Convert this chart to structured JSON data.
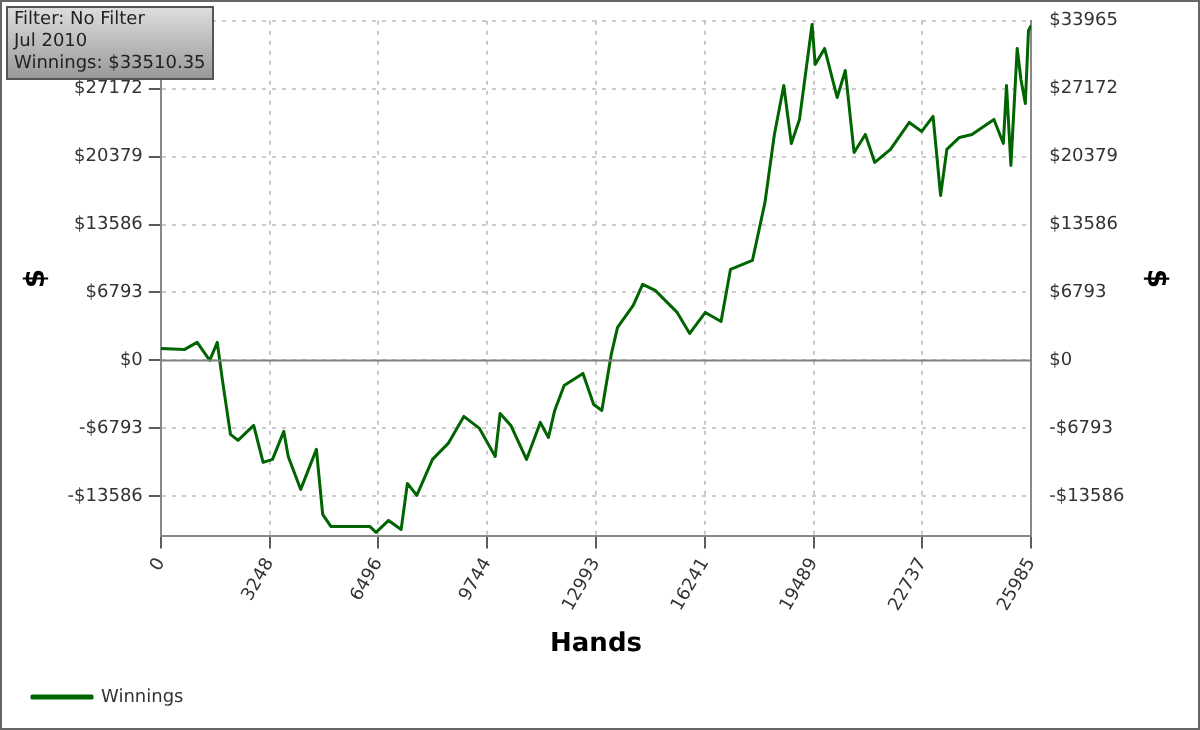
{
  "chart_data": {
    "type": "line",
    "xlabel": "Hands",
    "ylabel": "$",
    "y2label": "$",
    "annotations": [
      "Filter: No Filter",
      "Jul 2010",
      "Winnings: $33510.35"
    ],
    "x": [
      0,
      713,
      1085,
      1461,
      1686,
      1836,
      2080,
      2305,
      2773,
      3054,
      3335,
      3672,
      3804,
      4177,
      4645,
      4833,
      5075,
      6238,
      6425,
      6800,
      7175,
      7362,
      7643,
      8111,
      8580,
      9046,
      9514,
      9983,
      10130,
      10450,
      10918,
      11330,
      11573,
      11760,
      12041,
      12603,
      12923,
      13167,
      13448,
      13636,
      14104,
      14385,
      14760,
      15415,
      15790,
      16258,
      16726,
      17007,
      17663,
      18037,
      18318,
      18599,
      18824,
      19067,
      19443,
      19536,
      19817,
      20192,
      20435,
      20697,
      21034,
      21315,
      21784,
      22346,
      22718,
      23055,
      23280,
      23467,
      23842,
      24217,
      24873,
      25154,
      25248,
      25379,
      25567,
      25679,
      25810,
      25904,
      25985
    ],
    "series": [
      {
        "name": "Winnings",
        "color": "#006400",
        "values": [
          1200,
          1100,
          1800,
          0,
          1800,
          -1900,
          -7400,
          -8000,
          -6500,
          -10200,
          -9900,
          -7100,
          -9600,
          -12900,
          -8900,
          -15400,
          -16600,
          -16600,
          -17200,
          -16000,
          -16900,
          -12300,
          -13500,
          -9900,
          -8300,
          -5600,
          -6800,
          -9600,
          -5300,
          -6500,
          -9900,
          -6200,
          -7700,
          -5000,
          -2500,
          -1300,
          -4400,
          -5000,
          600,
          3300,
          5500,
          7600,
          7000,
          4800,
          2700,
          4800,
          3900,
          9100,
          10000,
          15800,
          22600,
          27500,
          21700,
          24100,
          33600,
          29600,
          31200,
          26300,
          29000,
          20800,
          22600,
          19800,
          21100,
          23800,
          22900,
          24400,
          16500,
          21100,
          22300,
          22600,
          24100,
          21700,
          27500,
          19500,
          31200,
          28100,
          25700,
          33000,
          33500
        ]
      }
    ],
    "xlim": [
      0,
      25985
    ],
    "xticks": [
      0,
      3248,
      6496,
      9744,
      12993,
      16241,
      19489,
      22737,
      25985
    ],
    "ylim": [
      -17600,
      33965
    ],
    "yticks": [
      {
        "value": -13586,
        "label": "-$13586"
      },
      {
        "value": -6793,
        "label": "-$6793"
      },
      {
        "value": 0,
        "label": "$0"
      },
      {
        "value": 6793,
        "label": "$6793"
      },
      {
        "value": 13586,
        "label": "$13586"
      },
      {
        "value": 20379,
        "label": "$20379"
      },
      {
        "value": 27172,
        "label": "$27172"
      },
      {
        "value": 33965,
        "label": null
      }
    ],
    "y2lim": [
      -17600,
      33965
    ],
    "y2ticks": [
      {
        "value": -13586,
        "label": "-$13586"
      },
      {
        "value": -6793,
        "label": "-$6793"
      },
      {
        "value": 0,
        "label": "$0"
      },
      {
        "value": 6793,
        "label": "$6793"
      },
      {
        "value": 13586,
        "label": "$13586"
      },
      {
        "value": 20379,
        "label": "$20379"
      },
      {
        "value": 27172,
        "label": "$27172"
      },
      {
        "value": 33965,
        "label": "$33965"
      }
    ],
    "ref_lines": [
      {
        "axis": "y",
        "value": 0,
        "color": "#808080"
      }
    ],
    "grid": true,
    "legend": "bottom left",
    "marker": "none",
    "line_style": "solid"
  }
}
